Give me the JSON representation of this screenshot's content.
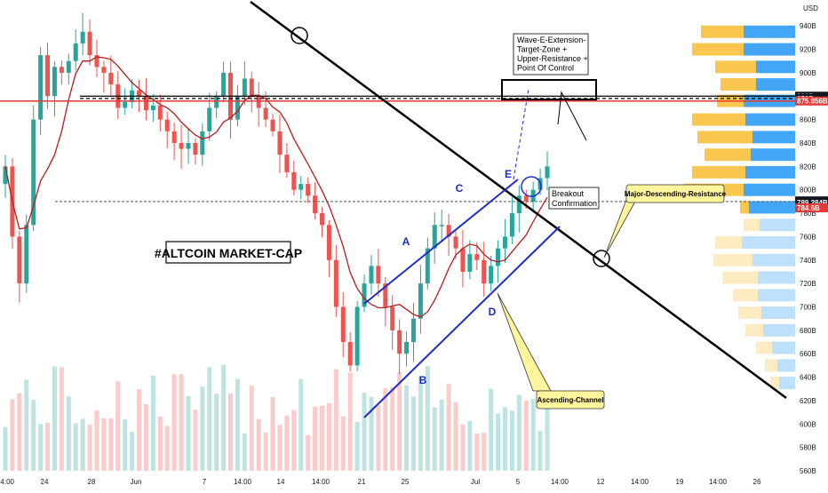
{
  "chart_data": {
    "type": "candlestick",
    "title": "#ALTCOIN MARKET-CAP",
    "currency": "USD",
    "y_unit": "B",
    "ylim": [
      560,
      950
    ],
    "y_ticks": [
      "560B",
      "580B",
      "600B",
      "620B",
      "640B",
      "660B",
      "680B",
      "700B",
      "720B",
      "740B",
      "760B",
      "780B",
      "800B",
      "820B",
      "840B",
      "860B",
      "880B",
      "900B",
      "920B",
      "940B"
    ],
    "x_ticks": [
      "14:00",
      "24",
      "28",
      "Jun",
      "7",
      "14:00",
      "14",
      "14:00",
      "21",
      "25",
      "Jul",
      "5",
      "14:00",
      "12",
      "14:00",
      "19",
      "14:00",
      "26"
    ],
    "price_labels": [
      {
        "text": "880B",
        "value": 880,
        "color": "#131722"
      },
      {
        "text": "878B",
        "value": 878,
        "color": "#131722"
      },
      {
        "text": "875.856B",
        "value": 875.856,
        "color": "#e53935"
      },
      {
        "text": "790.561B",
        "value": 790.561,
        "color": "#131722"
      },
      {
        "text": "789.284B",
        "value": 789.284,
        "color": "#131722"
      },
      {
        "text": "784.6B",
        "value": 784.6,
        "color": "#e53935"
      }
    ],
    "close_series": [
      820,
      760,
      720,
      770,
      860,
      915,
      880,
      905,
      900,
      910,
      925,
      935,
      915,
      905,
      900,
      890,
      870,
      875,
      885,
      880,
      868,
      872,
      860,
      850,
      840,
      835,
      840,
      830,
      850,
      870,
      880,
      900,
      860,
      880,
      895,
      880,
      870,
      860,
      850,
      830,
      815,
      800,
      805,
      795,
      780,
      770,
      740,
      700,
      670,
      650,
      700,
      720,
      735,
      720,
      700,
      680,
      660,
      670,
      690,
      720,
      750,
      770,
      770,
      760,
      750,
      730,
      745,
      740,
      720,
      735,
      750,
      760,
      780,
      795,
      790,
      800,
      810,
      820
    ],
    "wave_labels": [
      "A",
      "B",
      "C",
      "D",
      "E"
    ],
    "annotations": {
      "target_box": [
        "Wave-E-Extension-",
        "Target-Zone +",
        "Upper-Resistance +",
        "Point Of Control"
      ],
      "breakout": [
        "Breakout",
        "Confirmation"
      ],
      "descending": "Major-Descending-Resistance",
      "ascending": "Ascending-Channel"
    },
    "colors": {
      "up": "#26a69a",
      "down": "#ef5350",
      "ma": "#b71c1c",
      "channel": "#1e2cc8",
      "trend": "#000000",
      "red_line": "#e53935",
      "vp_blue": "#42a5f5",
      "vp_yellow": "#f9c74f",
      "callout": "#fff59d"
    }
  }
}
